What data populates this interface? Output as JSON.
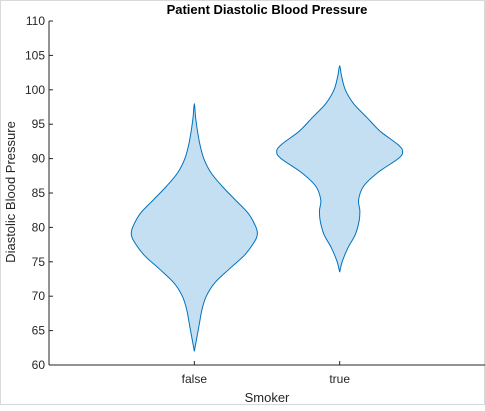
{
  "chart_data": {
    "type": "violin",
    "title": "Patient Diastolic Blood Pressure",
    "xlabel": "Smoker",
    "ylabel": "Diastolic Blood Pressure",
    "categories": [
      "false",
      "true"
    ],
    "ylim": [
      60,
      110
    ],
    "yticks": [
      60,
      65,
      70,
      75,
      80,
      85,
      90,
      95,
      100,
      105,
      110
    ],
    "grid": false,
    "fill_color": "#c5dff2",
    "line_color": "#0072bd",
    "series": [
      {
        "category": "false",
        "density_profile": [
          [
            62.0,
            0.0
          ],
          [
            63.0,
            0.02
          ],
          [
            64.5,
            0.05
          ],
          [
            66.0,
            0.08
          ],
          [
            68.0,
            0.12
          ],
          [
            70.0,
            0.19
          ],
          [
            72.0,
            0.33
          ],
          [
            74.0,
            0.56
          ],
          [
            76.0,
            0.8
          ],
          [
            78.0,
            0.96
          ],
          [
            79.0,
            1.0
          ],
          [
            80.0,
            0.98
          ],
          [
            82.0,
            0.86
          ],
          [
            84.0,
            0.65
          ],
          [
            86.0,
            0.44
          ],
          [
            88.0,
            0.26
          ],
          [
            90.0,
            0.15
          ],
          [
            92.0,
            0.09
          ],
          [
            94.0,
            0.05
          ],
          [
            96.0,
            0.02
          ],
          [
            98.0,
            0.0
          ]
        ]
      },
      {
        "category": "true",
        "density_profile": [
          [
            73.5,
            0.0
          ],
          [
            75.0,
            0.04
          ],
          [
            77.0,
            0.13
          ],
          [
            79.0,
            0.25
          ],
          [
            81.0,
            0.31
          ],
          [
            82.5,
            0.32
          ],
          [
            84.0,
            0.3
          ],
          [
            86.0,
            0.38
          ],
          [
            88.0,
            0.61
          ],
          [
            90.0,
            0.93
          ],
          [
            91.0,
            1.0
          ],
          [
            92.0,
            0.93
          ],
          [
            94.0,
            0.64
          ],
          [
            96.0,
            0.43
          ],
          [
            98.0,
            0.22
          ],
          [
            100.0,
            0.09
          ],
          [
            102.0,
            0.03
          ],
          [
            103.5,
            0.0
          ]
        ]
      }
    ]
  }
}
